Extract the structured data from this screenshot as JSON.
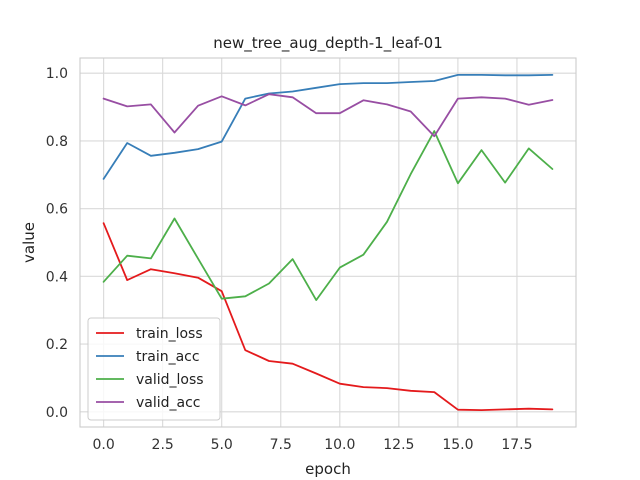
{
  "chart_data": {
    "type": "line",
    "title": "new_tree_aug_depth-1_leaf-01",
    "xlabel": "epoch",
    "ylabel": "value",
    "xlim": [
      -1.0,
      20.0
    ],
    "ylim": [
      -0.045,
      1.045
    ],
    "xticks": [
      0.0,
      2.5,
      5.0,
      7.5,
      10.0,
      12.5,
      15.0,
      17.5
    ],
    "xtick_labels": [
      "0.0",
      "2.5",
      "5.0",
      "7.5",
      "10.0",
      "12.5",
      "15.0",
      "17.5"
    ],
    "yticks": [
      0.0,
      0.2,
      0.4,
      0.6,
      0.8,
      1.0
    ],
    "ytick_labels": [
      "0.0",
      "0.2",
      "0.4",
      "0.6",
      "0.8",
      "1.0"
    ],
    "grid": true,
    "legend_position": "lower-left",
    "x": [
      0,
      1,
      2,
      3,
      4,
      5,
      6,
      7,
      8,
      9,
      10,
      11,
      12,
      13,
      14,
      15,
      16,
      17,
      18,
      19
    ],
    "series": [
      {
        "name": "train_loss",
        "color": "#e41a1c",
        "values": [
          0.557,
          0.389,
          0.421,
          0.409,
          0.396,
          0.356,
          0.182,
          0.15,
          0.142,
          0.113,
          0.083,
          0.073,
          0.07,
          0.062,
          0.058,
          0.006,
          0.005,
          0.007,
          0.009,
          0.007
        ]
      },
      {
        "name": "train_acc",
        "color": "#377eb8",
        "values": [
          0.688,
          0.794,
          0.756,
          0.765,
          0.776,
          0.798,
          0.925,
          0.94,
          0.946,
          0.957,
          0.968,
          0.971,
          0.971,
          0.974,
          0.977,
          0.995,
          0.995,
          0.994,
          0.994,
          0.995
        ]
      },
      {
        "name": "valid_loss",
        "color": "#4daf4a",
        "values": [
          0.384,
          0.461,
          0.453,
          0.571,
          0.452,
          0.334,
          0.341,
          0.379,
          0.451,
          0.33,
          0.426,
          0.464,
          0.561,
          0.702,
          0.829,
          0.675,
          0.773,
          0.677,
          0.778,
          0.717
        ]
      },
      {
        "name": "valid_acc",
        "color": "#984ea3",
        "values": [
          0.925,
          0.902,
          0.908,
          0.825,
          0.904,
          0.932,
          0.905,
          0.938,
          0.929,
          0.882,
          0.882,
          0.92,
          0.908,
          0.887,
          0.814,
          0.925,
          0.929,
          0.925,
          0.907,
          0.921
        ]
      }
    ]
  }
}
